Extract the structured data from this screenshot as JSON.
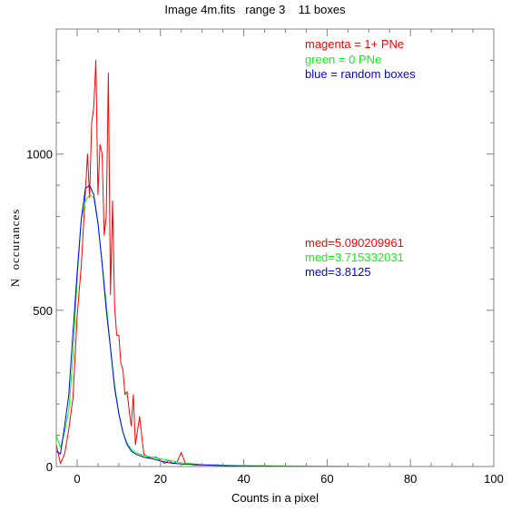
{
  "chart_data": {
    "type": "line",
    "title": "Image 4m.fits   range 3    11 boxes",
    "xlabel": "Counts in a pixel",
    "ylabel": "N  occurances",
    "xlim": [
      -5,
      100
    ],
    "ylim": [
      0,
      1400
    ],
    "x_ticks": [
      0,
      20,
      40,
      60,
      80,
      100
    ],
    "y_ticks": [
      0,
      500,
      1000
    ],
    "grid": false,
    "legend_position": "top-right",
    "series": [
      {
        "name": "magenta = 1+ PNe",
        "color": "#ff0000",
        "x": [
          -5,
          -4,
          -3,
          -2,
          -1,
          0,
          0.5,
          1,
          1.5,
          2,
          2.5,
          3,
          3.5,
          4,
          4.5,
          5,
          5.5,
          6,
          6.5,
          7,
          7.5,
          8,
          8.5,
          9,
          9.5,
          10,
          10.5,
          11,
          11.5,
          12,
          12.5,
          13,
          13.5,
          14,
          15,
          16,
          17,
          18,
          19,
          20,
          21,
          22,
          23,
          24,
          25,
          26,
          27,
          28,
          30,
          32,
          34,
          36,
          38,
          40,
          45,
          50,
          55,
          60,
          70,
          80,
          90,
          100
        ],
        "y": [
          70,
          10,
          40,
          120,
          220,
          480,
          560,
          640,
          760,
          880,
          1000,
          860,
          1100,
          1150,
          1300,
          870,
          1030,
          1000,
          740,
          800,
          1260,
          550,
          850,
          510,
          420,
          420,
          330,
          310,
          230,
          240,
          180,
          130,
          230,
          70,
          160,
          40,
          30,
          30,
          30,
          20,
          10,
          20,
          10,
          15,
          45,
          10,
          10,
          5,
          5,
          5,
          5,
          3,
          3,
          2,
          2,
          1,
          1,
          1,
          0,
          0,
          0,
          0
        ]
      },
      {
        "name": "green = 0 PNe",
        "color": "#00ff00",
        "x": [
          -5,
          -4,
          -3,
          -2,
          -1,
          0,
          1,
          2,
          3,
          4,
          5,
          6,
          7,
          8,
          9,
          10,
          11,
          12,
          13,
          14,
          15,
          16,
          18,
          20,
          22,
          25,
          30,
          35,
          40,
          50,
          60,
          70,
          80,
          100
        ],
        "y": [
          100,
          60,
          110,
          180,
          350,
          600,
          790,
          850,
          870,
          860,
          780,
          650,
          520,
          380,
          260,
          170,
          110,
          75,
          55,
          45,
          40,
          35,
          30,
          25,
          20,
          12,
          6,
          4,
          3,
          2,
          1,
          0,
          0,
          0
        ]
      },
      {
        "name": "blue = random boxes",
        "color": "#0000ff",
        "x": [
          -5,
          -4,
          -3,
          -2,
          -1,
          0,
          1,
          2,
          3,
          4,
          5,
          6,
          7,
          8,
          9,
          10,
          11,
          12,
          13,
          14,
          15,
          16,
          18,
          20,
          22,
          25,
          30,
          35,
          40,
          50,
          60,
          70,
          80,
          100
        ],
        "y": [
          50,
          40,
          130,
          230,
          430,
          620,
          790,
          890,
          900,
          870,
          780,
          650,
          500,
          380,
          250,
          170,
          110,
          70,
          50,
          40,
          35,
          30,
          25,
          18,
          12,
          8,
          5,
          3,
          2,
          1,
          0,
          0,
          0,
          0
        ]
      }
    ],
    "annotations": [
      {
        "text": "med=5.090209961",
        "color": "#ff0000"
      },
      {
        "text": "med=3.715332031",
        "color": "#00ff00"
      },
      {
        "text": "med=3.8125",
        "color": "#0000ff"
      }
    ]
  }
}
